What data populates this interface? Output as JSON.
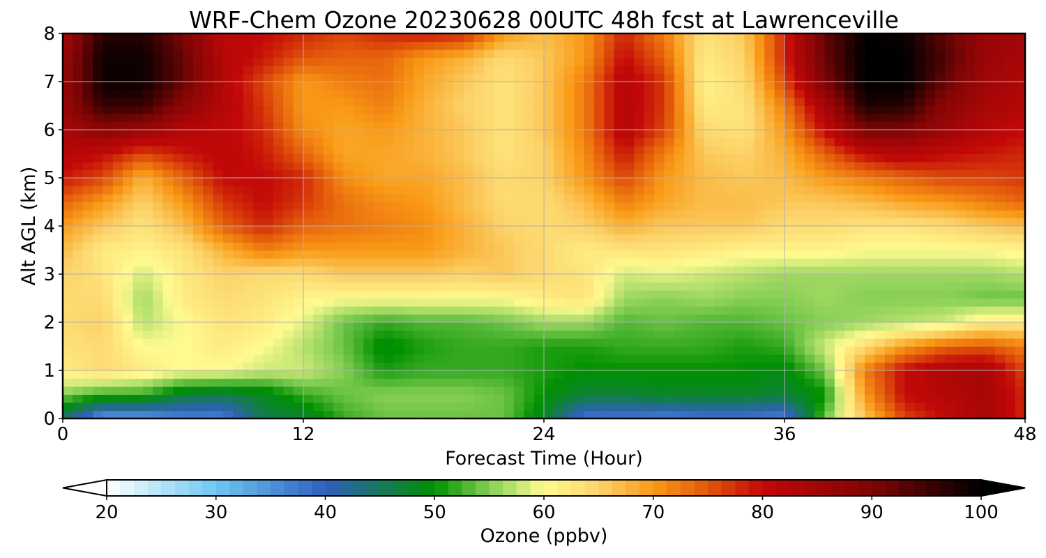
{
  "chart_data": {
    "type": "heatmap",
    "title": "WRF-Chem Ozone  20230628 00UTC 48h fcst at Lawrenceville",
    "xlabel": "Forecast Time (Hour)",
    "ylabel": "Alt AGL (km)",
    "xlim": [
      0,
      48
    ],
    "ylim": [
      0,
      8
    ],
    "xticks": [
      "0",
      "12",
      "24",
      "36",
      "48"
    ],
    "yticks": [
      "0",
      "1",
      "2",
      "3",
      "4",
      "5",
      "6",
      "7",
      "8"
    ],
    "grid": true,
    "x_hours": [
      0,
      2,
      4,
      6,
      8,
      10,
      12,
      14,
      16,
      18,
      20,
      22,
      24,
      26,
      28,
      30,
      32,
      34,
      36,
      38,
      40,
      42,
      44,
      46,
      48
    ],
    "z_km": [
      0,
      0.5,
      1,
      1.5,
      2,
      2.5,
      3,
      3.5,
      4,
      4.5,
      5,
      5.5,
      6,
      6.5,
      7,
      7.5,
      8
    ],
    "ozone_ppbv": [
      [
        44,
        33,
        33,
        36,
        36,
        46,
        47,
        52,
        54,
        54,
        54,
        54,
        48,
        37,
        37,
        36,
        37,
        37,
        36,
        54,
        66,
        76,
        80,
        84,
        78
      ],
      [
        55,
        52,
        52,
        47,
        46,
        48,
        52,
        54,
        55,
        55,
        55,
        54,
        50,
        47,
        47,
        48,
        48,
        48,
        47,
        50,
        70,
        80,
        82,
        84,
        78
      ],
      [
        62,
        64,
        62,
        60,
        60,
        58,
        58,
        55,
        51,
        52,
        52,
        52,
        51,
        50,
        50,
        50,
        50,
        50,
        49,
        54,
        72,
        80,
        83,
        84,
        76
      ],
      [
        63,
        64,
        60,
        60,
        62,
        60,
        57,
        54,
        49,
        51,
        52,
        52,
        51,
        51,
        52,
        52,
        52,
        51,
        52,
        58,
        64,
        70,
        74,
        75,
        72
      ],
      [
        64,
        65,
        57,
        60,
        63,
        62,
        59,
        54,
        52,
        53,
        53,
        54,
        56,
        56,
        53,
        54,
        53,
        53,
        54,
        55,
        56,
        57,
        58,
        62,
        62
      ],
      [
        64,
        64,
        56,
        62,
        64,
        63,
        61,
        60,
        60,
        60,
        60,
        60,
        62,
        63,
        56,
        55,
        56,
        55,
        55,
        56,
        55,
        55,
        55,
        54,
        54
      ],
      [
        65,
        63,
        58,
        62,
        65,
        64,
        64,
        66,
        66,
        66,
        65,
        66,
        64,
        63,
        58,
        59,
        58,
        57,
        56,
        56,
        56,
        56,
        56,
        56,
        57
      ],
      [
        67,
        62,
        61,
        63,
        68,
        72,
        70,
        70,
        70,
        70,
        68,
        66,
        64,
        62,
        63,
        63,
        62,
        61,
        61,
        61,
        60,
        60,
        60,
        60,
        61
      ],
      [
        70,
        66,
        63,
        67,
        74,
        78,
        74,
        73,
        72,
        71,
        68,
        65,
        64,
        65,
        68,
        66,
        66,
        66,
        64,
        64,
        63,
        63,
        64,
        66,
        67
      ],
      [
        74,
        70,
        65,
        70,
        77,
        80,
        77,
        73,
        71,
        70,
        67,
        64,
        64,
        67,
        72,
        69,
        67,
        67,
        66,
        66,
        67,
        69,
        70,
        72,
        74
      ],
      [
        79,
        76,
        68,
        74,
        80,
        80,
        78,
        71,
        69,
        69,
        67,
        64,
        65,
        70,
        76,
        70,
        67,
        66,
        67,
        70,
        72,
        74,
        76,
        76,
        77
      ],
      [
        82,
        80,
        76,
        79,
        81,
        79,
        74,
        69,
        69,
        68,
        66,
        63,
        65,
        71,
        79,
        72,
        66,
        65,
        68,
        74,
        80,
        82,
        80,
        79,
        78
      ],
      [
        84,
        88,
        86,
        82,
        81,
        78,
        71,
        69,
        70,
        68,
        66,
        63,
        66,
        72,
        82,
        76,
        64,
        63,
        70,
        80,
        90,
        90,
        86,
        82,
        80
      ],
      [
        86,
        96,
        96,
        88,
        82,
        77,
        70,
        70,
        72,
        68,
        65,
        63,
        66,
        72,
        82,
        77,
        62,
        63,
        72,
        84,
        98,
        97,
        88,
        84,
        82
      ],
      [
        86,
        99,
        99,
        92,
        82,
        76,
        70,
        72,
        73,
        69,
        66,
        63,
        66,
        72,
        82,
        77,
        61,
        64,
        76,
        90,
        100,
        100,
        92,
        85,
        83
      ],
      [
        86,
        99,
        99,
        92,
        82,
        79,
        75,
        74,
        74,
        70,
        68,
        64,
        66,
        70,
        80,
        74,
        62,
        65,
        78,
        92,
        100,
        100,
        94,
        86,
        84
      ],
      [
        84,
        97,
        97,
        90,
        81,
        80,
        78,
        76,
        78,
        79,
        78,
        70,
        67,
        70,
        78,
        72,
        63,
        66,
        78,
        92,
        100,
        99,
        92,
        86,
        85
      ]
    ],
    "colorbar": {
      "label": "Ozone  (ppbv)",
      "ticks": [
        "20",
        "30",
        "40",
        "50",
        "60",
        "70",
        "80",
        "90",
        "100"
      ],
      "range": [
        20,
        100
      ],
      "extend": "both",
      "stops": [
        {
          "v": 20,
          "c": "#ffffff"
        },
        {
          "v": 30,
          "c": "#6cc7f2"
        },
        {
          "v": 40,
          "c": "#2f5fbd"
        },
        {
          "v": 50,
          "c": "#009000"
        },
        {
          "v": 55,
          "c": "#86cf55"
        },
        {
          "v": 60,
          "c": "#fffb90"
        },
        {
          "v": 65,
          "c": "#fcd36a"
        },
        {
          "v": 70,
          "c": "#f99a16"
        },
        {
          "v": 75,
          "c": "#e2560b"
        },
        {
          "v": 80,
          "c": "#c20808"
        },
        {
          "v": 90,
          "c": "#7f0505"
        },
        {
          "v": 100,
          "c": "#000000"
        }
      ]
    }
  }
}
